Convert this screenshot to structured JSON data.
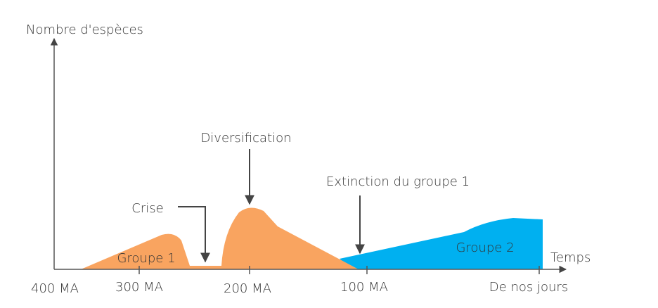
{
  "axes": {
    "y_label": "Nombre d'espèces",
    "x_label": "Temps"
  },
  "x_ticks": [
    "400 MA",
    "300 MA",
    "200 MA",
    "100 MA",
    "De nos jours"
  ],
  "annotations": {
    "crisis": "Crise",
    "diversification": "Diversification",
    "extinction": "Extinction du groupe 1"
  },
  "groups": [
    "Groupe 1",
    "Groupe 2"
  ]
}
